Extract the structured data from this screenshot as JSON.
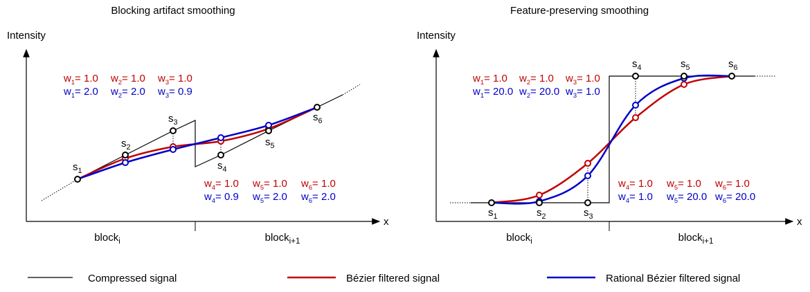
{
  "panels": [
    {
      "title": "Blocking artifact smoothing",
      "y_label": "Intensity",
      "x_label": "x",
      "blocks": [
        {
          "text": "block",
          "sub": "i"
        },
        {
          "text": "block",
          "sub": "i+1"
        }
      ],
      "points": [
        {
          "text": "s",
          "sub": "1"
        },
        {
          "text": "s",
          "sub": "2"
        },
        {
          "text": "s",
          "sub": "3"
        },
        {
          "text": "s",
          "sub": "4"
        },
        {
          "text": "s",
          "sub": "5"
        },
        {
          "text": "s",
          "sub": "6"
        }
      ],
      "weights_top": {
        "red": [
          {
            "text": "w",
            "sub": "1",
            "value": "= 1.0"
          },
          {
            "text": "w",
            "sub": "2",
            "value": "= 1.0"
          },
          {
            "text": "w",
            "sub": "3",
            "value": "= 1.0"
          }
        ],
        "blue": [
          {
            "text": "w",
            "sub": "1",
            "value": "= 2.0"
          },
          {
            "text": "w",
            "sub": "2",
            "value": "= 2.0"
          },
          {
            "text": "w",
            "sub": "3",
            "value": "= 0.9"
          }
        ]
      },
      "weights_bottom": {
        "red": [
          {
            "text": "w",
            "sub": "4",
            "value": "= 1.0"
          },
          {
            "text": "w",
            "sub": "5",
            "value": "= 1.0"
          },
          {
            "text": "w",
            "sub": "6",
            "value": "= 1.0"
          }
        ],
        "blue": [
          {
            "text": "w",
            "sub": "4",
            "value": "= 0.9"
          },
          {
            "text": "w",
            "sub": "5",
            "value": "= 2.0"
          },
          {
            "text": "w",
            "sub": "6",
            "value": "= 2.0"
          }
        ]
      }
    },
    {
      "title": "Feature-preserving smoothing",
      "y_label": "Intensity",
      "x_label": "x",
      "blocks": [
        {
          "text": "block",
          "sub": "i"
        },
        {
          "text": "block",
          "sub": "i+1"
        }
      ],
      "points": [
        {
          "text": "s",
          "sub": "1"
        },
        {
          "text": "s",
          "sub": "2"
        },
        {
          "text": "s",
          "sub": "3"
        },
        {
          "text": "s",
          "sub": "4"
        },
        {
          "text": "s",
          "sub": "5"
        },
        {
          "text": "s",
          "sub": "6"
        }
      ],
      "weights_top": {
        "red": [
          {
            "text": "w",
            "sub": "1",
            "value": "= 1.0"
          },
          {
            "text": "w",
            "sub": "2",
            "value": "= 1.0"
          },
          {
            "text": "w",
            "sub": "3",
            "value": "= 1.0"
          }
        ],
        "blue": [
          {
            "text": "w",
            "sub": "1",
            "value": "= 20.0"
          },
          {
            "text": "w",
            "sub": "2",
            "value": "= 20.0"
          },
          {
            "text": "w",
            "sub": "3",
            "value": "= 1.0"
          }
        ]
      },
      "weights_bottom": {
        "red": [
          {
            "text": "w",
            "sub": "4",
            "value": "= 1.0"
          },
          {
            "text": "w",
            "sub": "5",
            "value": "= 1.0"
          },
          {
            "text": "w",
            "sub": "6",
            "value": "= 1.0"
          }
        ],
        "blue": [
          {
            "text": "w",
            "sub": "4",
            "value": "= 1.0"
          },
          {
            "text": "w",
            "sub": "5",
            "value": "= 20.0"
          },
          {
            "text": "w",
            "sub": "6",
            "value": "= 20.0"
          }
        ]
      }
    }
  ],
  "legend": [
    "Compressed signal",
    "Bézier filtered signal",
    "Rational Bézier filtered signal"
  ]
}
